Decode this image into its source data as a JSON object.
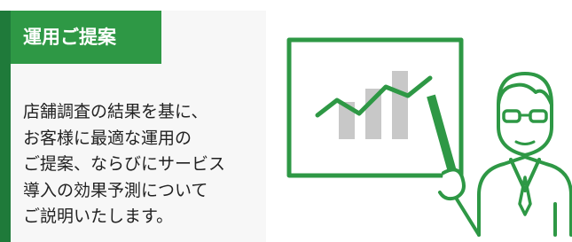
{
  "header": {
    "title": "運用ご提案"
  },
  "body": {
    "lines": [
      "店舗調査の結果を基に、",
      "お客様に最適な運用の",
      "ご提案、ならびにサービス",
      "導入の効果予測について",
      "ご説明いたします。"
    ]
  }
}
